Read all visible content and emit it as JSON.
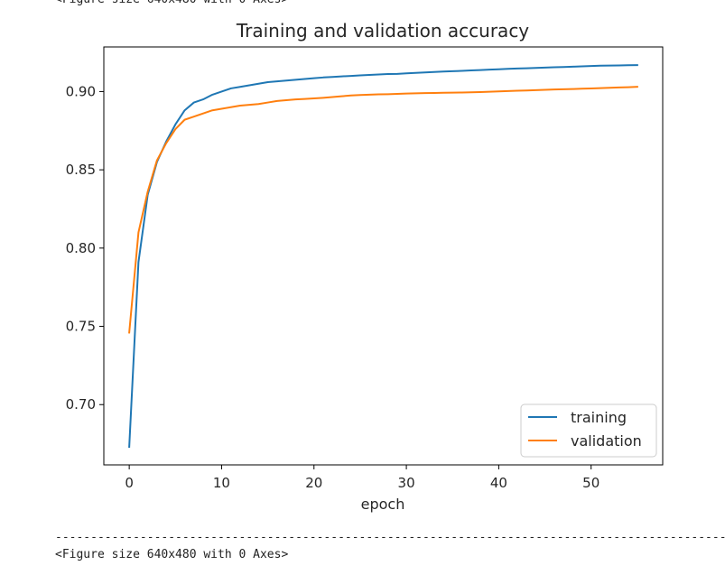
{
  "output": {
    "figure_text_top": "<Figure size 640x480 with 0 Axes>",
    "separator": "-----------------------------------------------------------------------------------------------------------------------------",
    "figure_text_bottom": "<Figure size 640x480 with 0 Axes>"
  },
  "chart_data": {
    "type": "line",
    "title": "Training and validation accuracy",
    "xlabel": "epoch",
    "ylabel": "",
    "xlim": [
      -2.75,
      57.75
    ],
    "ylim": [
      0.6615,
      0.9285
    ],
    "xticks": [
      0,
      10,
      20,
      30,
      40,
      50
    ],
    "yticks": [
      0.7,
      0.75,
      0.8,
      0.85,
      0.9
    ],
    "ytick_labels": [
      "0.70",
      "0.75",
      "0.80",
      "0.85",
      "0.90"
    ],
    "grid": false,
    "legend_position": "lower-right",
    "colors": {
      "training": "#1f77b4",
      "validation": "#ff7f0e"
    },
    "x": [
      0,
      1,
      2,
      3,
      4,
      5,
      6,
      7,
      8,
      9,
      10,
      11,
      12,
      13,
      14,
      15,
      16,
      17,
      18,
      19,
      20,
      21,
      22,
      23,
      24,
      25,
      26,
      27,
      28,
      29,
      30,
      31,
      32,
      33,
      34,
      35,
      36,
      37,
      38,
      39,
      40,
      41,
      42,
      43,
      44,
      45,
      46,
      47,
      48,
      49,
      50,
      51,
      52,
      53,
      54,
      55
    ],
    "series": [
      {
        "name": "training",
        "values": [
          0.673,
          0.791,
          0.834,
          0.855,
          0.868,
          0.879,
          0.888,
          0.893,
          0.895,
          0.898,
          0.9,
          0.902,
          0.903,
          0.904,
          0.905,
          0.906,
          0.9065,
          0.907,
          0.9075,
          0.908,
          0.9085,
          0.909,
          0.9093,
          0.9097,
          0.91,
          0.9103,
          0.9106,
          0.9109,
          0.9112,
          0.9113,
          0.9116,
          0.9119,
          0.9122,
          0.9125,
          0.9128,
          0.913,
          0.9132,
          0.9135,
          0.9137,
          0.914,
          0.9142,
          0.9145,
          0.9147,
          0.9149,
          0.9151,
          0.9153,
          0.9155,
          0.9157,
          0.9159,
          0.9161,
          0.9163,
          0.9165,
          0.9166,
          0.9167,
          0.9168,
          0.9169
        ]
      },
      {
        "name": "validation",
        "values": [
          0.746,
          0.81,
          0.836,
          0.856,
          0.867,
          0.876,
          0.882,
          0.884,
          0.886,
          0.888,
          0.889,
          0.89,
          0.891,
          0.8915,
          0.892,
          0.893,
          0.894,
          0.8945,
          0.895,
          0.8953,
          0.8956,
          0.896,
          0.8965,
          0.897,
          0.8975,
          0.8978,
          0.898,
          0.8982,
          0.8983,
          0.8985,
          0.8987,
          0.8989,
          0.899,
          0.8991,
          0.8992,
          0.8993,
          0.8994,
          0.8995,
          0.8997,
          0.8999,
          0.9001,
          0.9003,
          0.9005,
          0.9007,
          0.9009,
          0.9011,
          0.9013,
          0.9015,
          0.9016,
          0.9018,
          0.902,
          0.9022,
          0.9024,
          0.9026,
          0.9028,
          0.903
        ]
      }
    ]
  }
}
